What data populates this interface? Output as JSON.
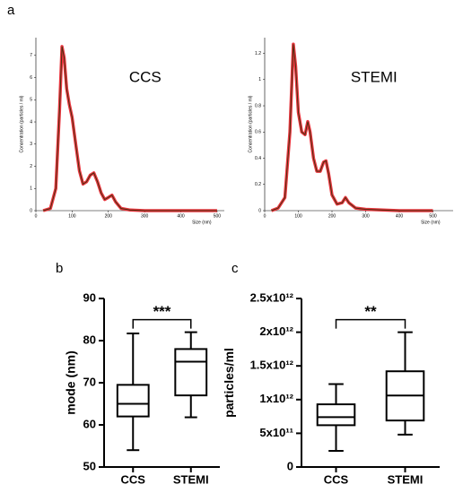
{
  "chart_data": [
    {
      "type": "line",
      "label": "a",
      "annotation": "CCS",
      "xlabel": "Size (nm)",
      "ylabel": "Concentration (particles / ml)",
      "x": [
        20,
        40,
        55,
        65,
        72,
        78,
        85,
        92,
        100,
        110,
        120,
        130,
        140,
        150,
        160,
        170,
        180,
        190,
        200,
        210,
        220,
        235,
        260,
        300,
        400,
        500
      ],
      "series": [
        {
          "color": "#4a3010",
          "band_color": "#e8202a",
          "values": [
            0,
            0.1,
            1,
            4.5,
            7.4,
            6.9,
            5.5,
            4.8,
            4.2,
            3,
            1.8,
            1.2,
            1.3,
            1.6,
            1.7,
            1.3,
            0.8,
            0.5,
            0.6,
            0.7,
            0.4,
            0.1,
            0.03,
            0,
            0,
            0
          ]
        }
      ],
      "xlim": [
        0,
        520
      ],
      "xticks": [
        0,
        100,
        200,
        300,
        400,
        500
      ],
      "ylim": [
        0,
        7.8
      ],
      "yticks": [
        0,
        1,
        2,
        3,
        4,
        5,
        6,
        7
      ]
    },
    {
      "type": "line",
      "annotation": "STEMI",
      "xlabel": "Size (nm)",
      "ylabel": "Concentration (particles / ml)",
      "x": [
        20,
        40,
        60,
        75,
        85,
        92,
        100,
        110,
        120,
        128,
        135,
        145,
        155,
        165,
        175,
        182,
        190,
        200,
        215,
        230,
        240,
        250,
        270,
        300,
        400,
        500
      ],
      "series": [
        {
          "color": "#4a3010",
          "band_color": "#e8202a",
          "values": [
            0,
            0.02,
            0.1,
            0.6,
            1.27,
            1.1,
            0.75,
            0.6,
            0.58,
            0.68,
            0.6,
            0.4,
            0.3,
            0.3,
            0.37,
            0.38,
            0.28,
            0.12,
            0.05,
            0.06,
            0.1,
            0.06,
            0.02,
            0.01,
            0,
            0
          ]
        }
      ],
      "xlim": [
        0,
        560
      ],
      "xticks": [
        0,
        100,
        200,
        300,
        400,
        500
      ],
      "ylim": [
        0,
        1.32
      ],
      "yticks": [
        0,
        0.2,
        0.4,
        0.6,
        0.8,
        1,
        1.2
      ]
    },
    {
      "type": "box",
      "label": "b",
      "ylabel": "mode (nm)",
      "annotation": "***",
      "categories": [
        "CCS",
        "STEMI"
      ],
      "min": [
        54,
        61.8
      ],
      "q1": [
        62,
        67
      ],
      "median": [
        65,
        75
      ],
      "q3": [
        69.5,
        78
      ],
      "max": [
        81.7,
        82
      ],
      "ylim": [
        50,
        90
      ],
      "yticks": [
        50,
        60,
        70,
        80,
        90
      ]
    },
    {
      "type": "box",
      "label": "c",
      "ylabel": "particles/ml",
      "annotation": "**",
      "categories": [
        "CCS",
        "STEMI"
      ],
      "min": [
        240000000000,
        480000000000
      ],
      "q1": [
        620000000000,
        690000000000
      ],
      "median": [
        740000000000,
        1060000000000
      ],
      "q3": [
        930000000000,
        1420000000000
      ],
      "max": [
        1230000000000,
        2000000000000
      ],
      "ylim": [
        0,
        2500000000000
      ],
      "yticks": [
        0,
        {
          "value": 500000000000,
          "label": "5x10¹¹"
        },
        {
          "value": 1000000000000,
          "label": "1x10¹²"
        },
        {
          "value": 1500000000000,
          "label": "1.5x10¹²"
        },
        {
          "value": 2000000000000,
          "label": "2x10¹²"
        },
        {
          "value": 2500000000000,
          "label": "2.5x10¹²"
        }
      ]
    }
  ]
}
